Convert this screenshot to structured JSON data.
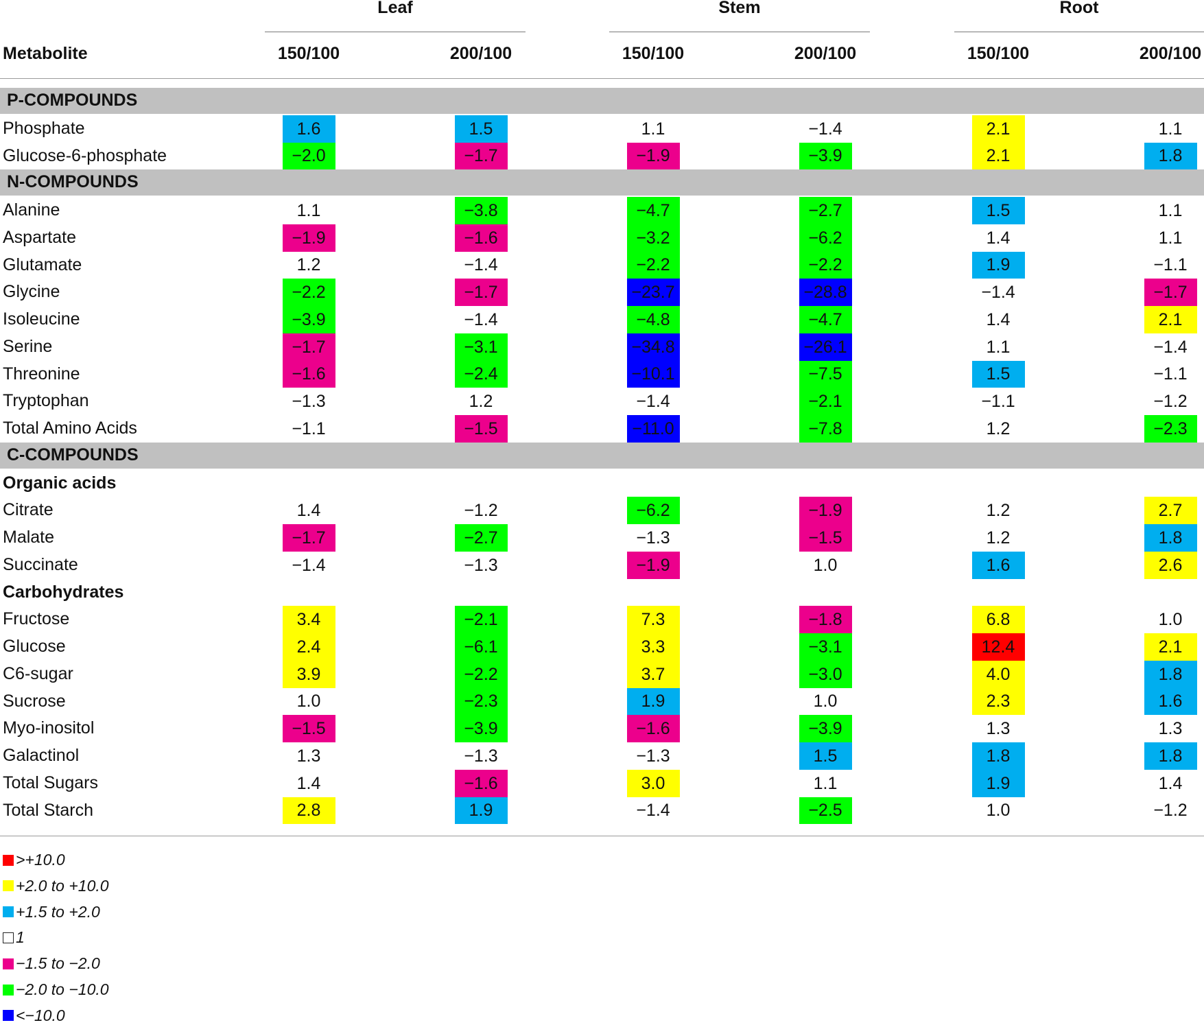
{
  "table": {
    "group_headers": [
      "Leaf",
      "Stem",
      "Root"
    ],
    "metabolite_header": "Metabolite",
    "column_headers": [
      "150/100",
      "200/100",
      "150/100",
      "200/100",
      "150/100",
      "200/100"
    ],
    "sections": [
      {
        "title": "P-COMPOUNDS",
        "groups": [
          {
            "subtitle": "",
            "rows": [
              {
                "name": "Phosphate",
                "values": [
                  "1.6",
                  "1.5",
                  "1.1",
                  "−1.4",
                  "2.1",
                  "1.1"
                ]
              },
              {
                "name": "Glucose-6-phosphate",
                "values": [
                  "−2.0",
                  "−1.7",
                  "−1.9",
                  "−3.9",
                  "2.1",
                  "1.8"
                ]
              }
            ]
          }
        ]
      },
      {
        "title": "N-COMPOUNDS",
        "groups": [
          {
            "subtitle": "",
            "rows": [
              {
                "name": "Alanine",
                "values": [
                  "1.1",
                  "−3.8",
                  "−4.7",
                  "−2.7",
                  "1.5",
                  "1.1"
                ]
              },
              {
                "name": "Aspartate",
                "values": [
                  "−1.9",
                  "−1.6",
                  "−3.2",
                  "−6.2",
                  "1.4",
                  "1.1"
                ]
              },
              {
                "name": "Glutamate",
                "values": [
                  "1.2",
                  "−1.4",
                  "−2.2",
                  "−2.2",
                  "1.9",
                  "−1.1"
                ]
              },
              {
                "name": "Glycine",
                "values": [
                  "−2.2",
                  "−1.7",
                  "−23.7",
                  "−28.8",
                  "−1.4",
                  "−1.7"
                ]
              },
              {
                "name": "Isoleucine",
                "values": [
                  "−3.9",
                  "−1.4",
                  "−4.8",
                  "−4.7",
                  "1.4",
                  "2.1"
                ]
              },
              {
                "name": "Serine",
                "values": [
                  "−1.7",
                  "−3.1",
                  "−34.8",
                  "−26.1",
                  "1.1",
                  "−1.4"
                ]
              },
              {
                "name": "Threonine",
                "values": [
                  "−1.6",
                  "−2.4",
                  "−10.1",
                  "−7.5",
                  "1.5",
                  "−1.1"
                ]
              },
              {
                "name": "Tryptophan",
                "values": [
                  "−1.3",
                  "1.2",
                  "−1.4",
                  "−2.1",
                  "−1.1",
                  "−1.2"
                ]
              },
              {
                "name": "Total Amino Acids",
                "values": [
                  "−1.1",
                  "−1.5",
                  "−11.0",
                  "−7.8",
                  "1.2",
                  "−2.3"
                ]
              }
            ]
          }
        ]
      },
      {
        "title": "C-COMPOUNDS",
        "groups": [
          {
            "subtitle": "Organic acids",
            "rows": [
              {
                "name": "Citrate",
                "values": [
                  "1.4",
                  "−1.2",
                  "−6.2",
                  "−1.9",
                  "1.2",
                  "2.7"
                ]
              },
              {
                "name": "Malate",
                "values": [
                  "−1.7",
                  "−2.7",
                  "−1.3",
                  "−1.5",
                  "1.2",
                  "1.8"
                ]
              },
              {
                "name": "Succinate",
                "values": [
                  "−1.4",
                  "−1.3",
                  "−1.9",
                  "1.0",
                  "1.6",
                  "2.6"
                ]
              }
            ]
          },
          {
            "subtitle": "Carbohydrates",
            "rows": [
              {
                "name": "Fructose",
                "values": [
                  "3.4",
                  "−2.1",
                  "7.3",
                  "−1.8",
                  "6.8",
                  "1.0"
                ]
              },
              {
                "name": "Glucose",
                "values": [
                  "2.4",
                  "−6.1",
                  "3.3",
                  "−3.1",
                  "12.4",
                  "2.1"
                ]
              },
              {
                "name": "C6-sugar",
                "values": [
                  "3.9",
                  "−2.2",
                  "3.7",
                  "−3.0",
                  "4.0",
                  "1.8"
                ]
              },
              {
                "name": "Sucrose",
                "values": [
                  "1.0",
                  "−2.3",
                  "1.9",
                  "1.0",
                  "2.3",
                  "1.6"
                ]
              },
              {
                "name": "Myo-inositol",
                "values": [
                  "−1.5",
                  "−3.9",
                  "−1.6",
                  "−3.9",
                  "1.3",
                  "1.3"
                ]
              },
              {
                "name": "Galactinol",
                "values": [
                  "1.3",
                  "−1.3",
                  "−1.3",
                  "1.5",
                  "1.8",
                  "1.8"
                ]
              },
              {
                "name": "Total Sugars",
                "values": [
                  "1.4",
                  "−1.6",
                  "3.0",
                  "1.1",
                  "1.9",
                  "1.4"
                ]
              },
              {
                "name": "Total Starch",
                "values": [
                  "2.8",
                  "1.9",
                  "−1.4",
                  "−2.5",
                  "1.0",
                  "−1.2"
                ]
              }
            ]
          }
        ]
      }
    ]
  },
  "legend": [
    {
      "label": ">+10.0",
      "color": "#ff0000",
      "key": "red"
    },
    {
      "label": "+2.0 to +10.0",
      "color": "#ffff00",
      "key": "yellow"
    },
    {
      "label": "+1.5 to +2.0",
      "color": "#00aeef",
      "key": "cyan"
    },
    {
      "label": "1",
      "color": "#ffffff",
      "key": "none"
    },
    {
      "label": "−1.5 to −2.0",
      "color": "#ec008c",
      "key": "magenta"
    },
    {
      "label": "−2.0 to −10.0",
      "color": "#00ff00",
      "key": "green"
    },
    {
      "label": "<−10.0",
      "color": "#0000ff",
      "key": "blue"
    }
  ],
  "colors": {
    "section_band": "#c0c0c0",
    "rule": "#9a9a9a"
  }
}
